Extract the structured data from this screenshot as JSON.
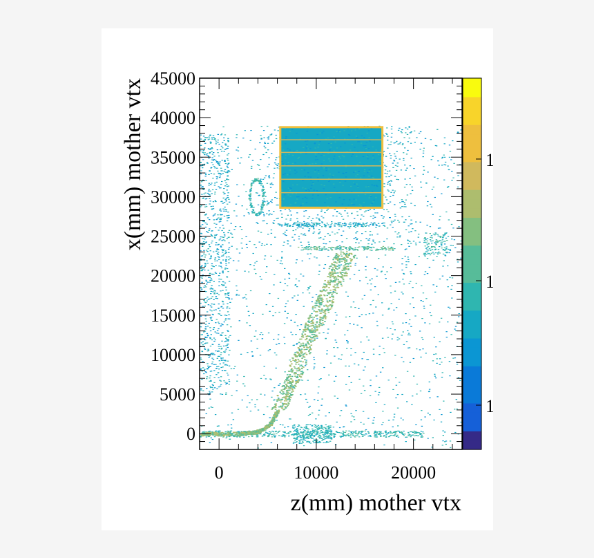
{
  "chart_data": {
    "type": "heatmap",
    "xlabel": "z(mm) mother vtx",
    "ylabel": "x(mm) mother vtx",
    "xlim": [
      -2000,
      25000
    ],
    "ylim": [
      -2000,
      45000
    ],
    "x_ticks": [
      0,
      10000,
      20000
    ],
    "y_ticks": [
      0,
      5000,
      10000,
      15000,
      20000,
      25000,
      30000,
      35000,
      40000,
      45000
    ],
    "z_scale": "log",
    "colorbar_labels": [
      "1",
      "1",
      "1"
    ],
    "colormap": [
      "#352a87",
      "#1560d8",
      "#0a7ad8",
      "#0b96d3",
      "#16a8c4",
      "#2fb6b0",
      "#57bc99",
      "#84bf80",
      "#adbd6e",
      "#d0b95d",
      "#eebf3e",
      "#f8d42a",
      "#f9fb0e"
    ],
    "features": [
      {
        "name": "main_band",
        "points": [
          [
            -2000,
            0
          ],
          [
            2000,
            0
          ],
          [
            4000,
            300
          ],
          [
            5200,
            1200
          ],
          [
            6000,
            3000
          ],
          [
            7500,
            7000
          ],
          [
            9000,
            12000
          ],
          [
            10500,
            16000
          ],
          [
            12000,
            20000
          ],
          [
            13000,
            23000
          ]
        ],
        "level": 7
      },
      {
        "name": "detector_block",
        "z_range": [
          6300,
          16800
        ],
        "x_range": [
          28600,
          38800
        ],
        "level": 4,
        "edge_level": 10,
        "horizontal_lines_x": [
          30500,
          32200,
          33900,
          35600,
          37200
        ]
      },
      {
        "name": "horizontal_strip",
        "z_range": [
          8000,
          18000
        ],
        "x_value": 23500,
        "level": 6
      },
      {
        "name": "horizontal_strip",
        "z_range": [
          6000,
          17000
        ],
        "x_value": 26500,
        "level": 4
      }
    ]
  }
}
